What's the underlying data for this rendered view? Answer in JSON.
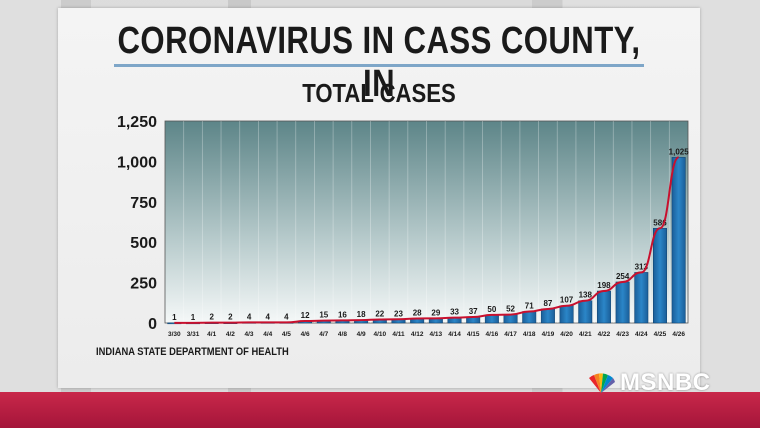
{
  "header": {
    "title": "CORONAVIRUS IN CASS COUNTY, IN",
    "subtitle": "TOTAL CASES"
  },
  "source_note": "INDIANA STATE DEPARTMENT OF HEALTH",
  "network_logo": "MSNBC",
  "colors": {
    "bar": "#1f77b4",
    "curve": "#c8102e",
    "band": "#a5153a"
  },
  "chart_data": {
    "type": "bar",
    "title": "TOTAL CASES",
    "xlabel": "",
    "ylabel": "",
    "ylim": [
      0,
      1250
    ],
    "yticks": [
      0,
      250,
      500,
      750,
      1000,
      1250
    ],
    "ytick_labels": [
      "0",
      "250",
      "500",
      "750",
      "1,000",
      "1,250"
    ],
    "grid": "vertical",
    "categories": [
      "3/30",
      "3/31",
      "4/1",
      "4/2",
      "4/3",
      "4/4",
      "4/5",
      "4/6",
      "4/7",
      "4/8",
      "4/9",
      "4/10",
      "4/11",
      "4/12",
      "4/13",
      "4/14",
      "4/15",
      "4/16",
      "4/17",
      "4/18",
      "4/19",
      "4/20",
      "4/21",
      "4/22",
      "4/23",
      "4/24",
      "4/25",
      "4/26"
    ],
    "values": [
      1,
      1,
      2,
      2,
      4,
      4,
      4,
      12,
      15,
      16,
      18,
      22,
      23,
      28,
      29,
      33,
      37,
      50,
      52,
      71,
      87,
      107,
      138,
      198,
      254,
      313,
      586,
      1025
    ],
    "value_labels": [
      "1",
      "1",
      "2",
      "2",
      "4",
      "4",
      "4",
      "12",
      "15",
      "16",
      "18",
      "22",
      "23",
      "28",
      "29",
      "33",
      "37",
      "50",
      "52",
      "71",
      "87",
      "107",
      "138",
      "198",
      "254",
      "313",
      "586",
      "1,025"
    ],
    "trend_line": true
  }
}
